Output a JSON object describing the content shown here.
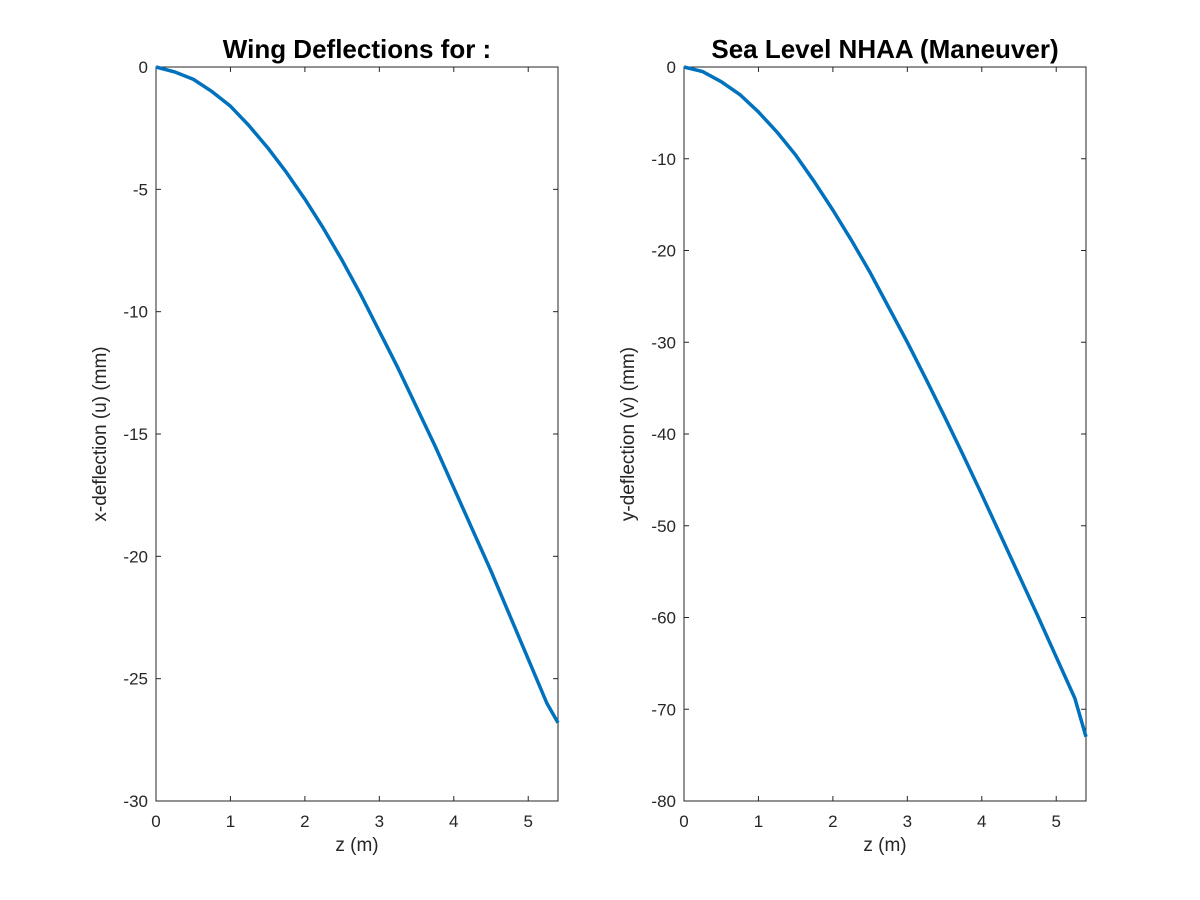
{
  "chart_data": [
    {
      "type": "line",
      "title": "Wing Deflections for :",
      "xlabel": "z (m)",
      "ylabel": "x-deflection (u) (mm)",
      "xlim": [
        0,
        5.4
      ],
      "ylim": [
        -30,
        0
      ],
      "xticks": [
        "0",
        "1",
        "2",
        "3",
        "4",
        "5"
      ],
      "yticks": [
        "0",
        "-5",
        "-10",
        "-15",
        "-20",
        "-25",
        "-30"
      ],
      "grid": false,
      "series": [
        {
          "color": "#0072BD",
          "x": [
            0,
            0.25,
            0.5,
            0.75,
            1.0,
            1.25,
            1.5,
            1.75,
            2.0,
            2.25,
            2.5,
            2.75,
            3.0,
            3.25,
            3.5,
            3.75,
            4.0,
            4.25,
            4.5,
            4.75,
            5.0,
            5.25,
            5.4
          ],
          "y": [
            0,
            -0.2,
            -0.5,
            -1.0,
            -1.6,
            -2.4,
            -3.3,
            -4.3,
            -5.4,
            -6.6,
            -7.9,
            -9.3,
            -10.8,
            -12.3,
            -13.9,
            -15.5,
            -17.2,
            -18.9,
            -20.6,
            -22.4,
            -24.2,
            -26.0,
            -26.8
          ]
        }
      ]
    },
    {
      "type": "line",
      "title": "Sea Level NHAA (Maneuver)",
      "xlabel": "z (m)",
      "ylabel": "y-deflection (v) (mm)",
      "xlim": [
        0,
        5.4
      ],
      "ylim": [
        -80,
        0
      ],
      "xticks": [
        "0",
        "1",
        "2",
        "3",
        "4",
        "5"
      ],
      "yticks": [
        "0",
        "-10",
        "-20",
        "-30",
        "-40",
        "-50",
        "-60",
        "-70",
        "-80"
      ],
      "grid": false,
      "series": [
        {
          "color": "#0072BD",
          "x": [
            0,
            0.25,
            0.5,
            0.75,
            1.0,
            1.25,
            1.5,
            1.75,
            2.0,
            2.25,
            2.5,
            2.75,
            3.0,
            3.25,
            3.5,
            3.75,
            4.0,
            4.25,
            4.5,
            4.75,
            5.0,
            5.25,
            5.4
          ],
          "y": [
            0,
            -0.5,
            -1.6,
            -3.0,
            -4.9,
            -7.1,
            -9.6,
            -12.5,
            -15.6,
            -18.9,
            -22.4,
            -26.2,
            -30.0,
            -34.0,
            -38.1,
            -42.3,
            -46.6,
            -51.0,
            -55.4,
            -59.8,
            -64.3,
            -68.8,
            -73.0
          ]
        }
      ]
    }
  ]
}
